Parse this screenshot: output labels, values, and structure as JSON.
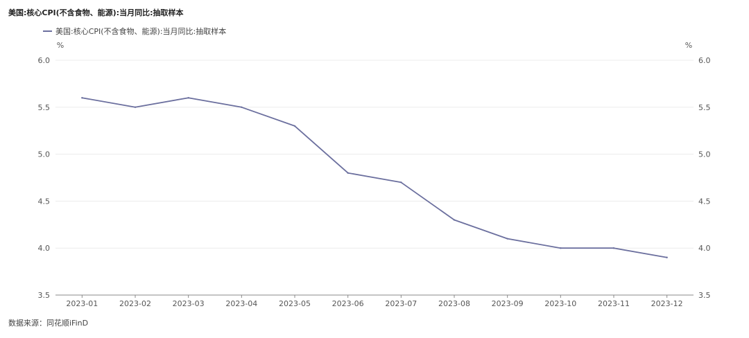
{
  "title": "美国:核心CPI(不含食物、能源):当月同比:抽取样本",
  "source": "数据来源：同花顺iFinD",
  "chart_data": {
    "type": "line",
    "title": "美国:核心CPI(不含食物、能源):当月同比:抽取样本",
    "xlabel": "",
    "ylabel": "%",
    "y2label": "%",
    "ylim": [
      3.5,
      6.0
    ],
    "yticks": [
      "6.0",
      "5.5",
      "5.0",
      "4.5",
      "4.0",
      "3.5"
    ],
    "categories": [
      "2023-01",
      "2023-02",
      "2023-03",
      "2023-04",
      "2023-05",
      "2023-06",
      "2023-07",
      "2023-08",
      "2023-09",
      "2023-10",
      "2023-11",
      "2023-12"
    ],
    "series": [
      {
        "name": "美国:核心CPI(不含食物、能源):当月同比:抽取样本",
        "color": "#6b6f9e",
        "values": [
          5.6,
          5.5,
          5.6,
          5.5,
          5.3,
          4.8,
          4.7,
          4.3,
          4.1,
          4.0,
          4.0,
          3.9
        ]
      }
    ],
    "grid": true,
    "legend": "top-left"
  }
}
